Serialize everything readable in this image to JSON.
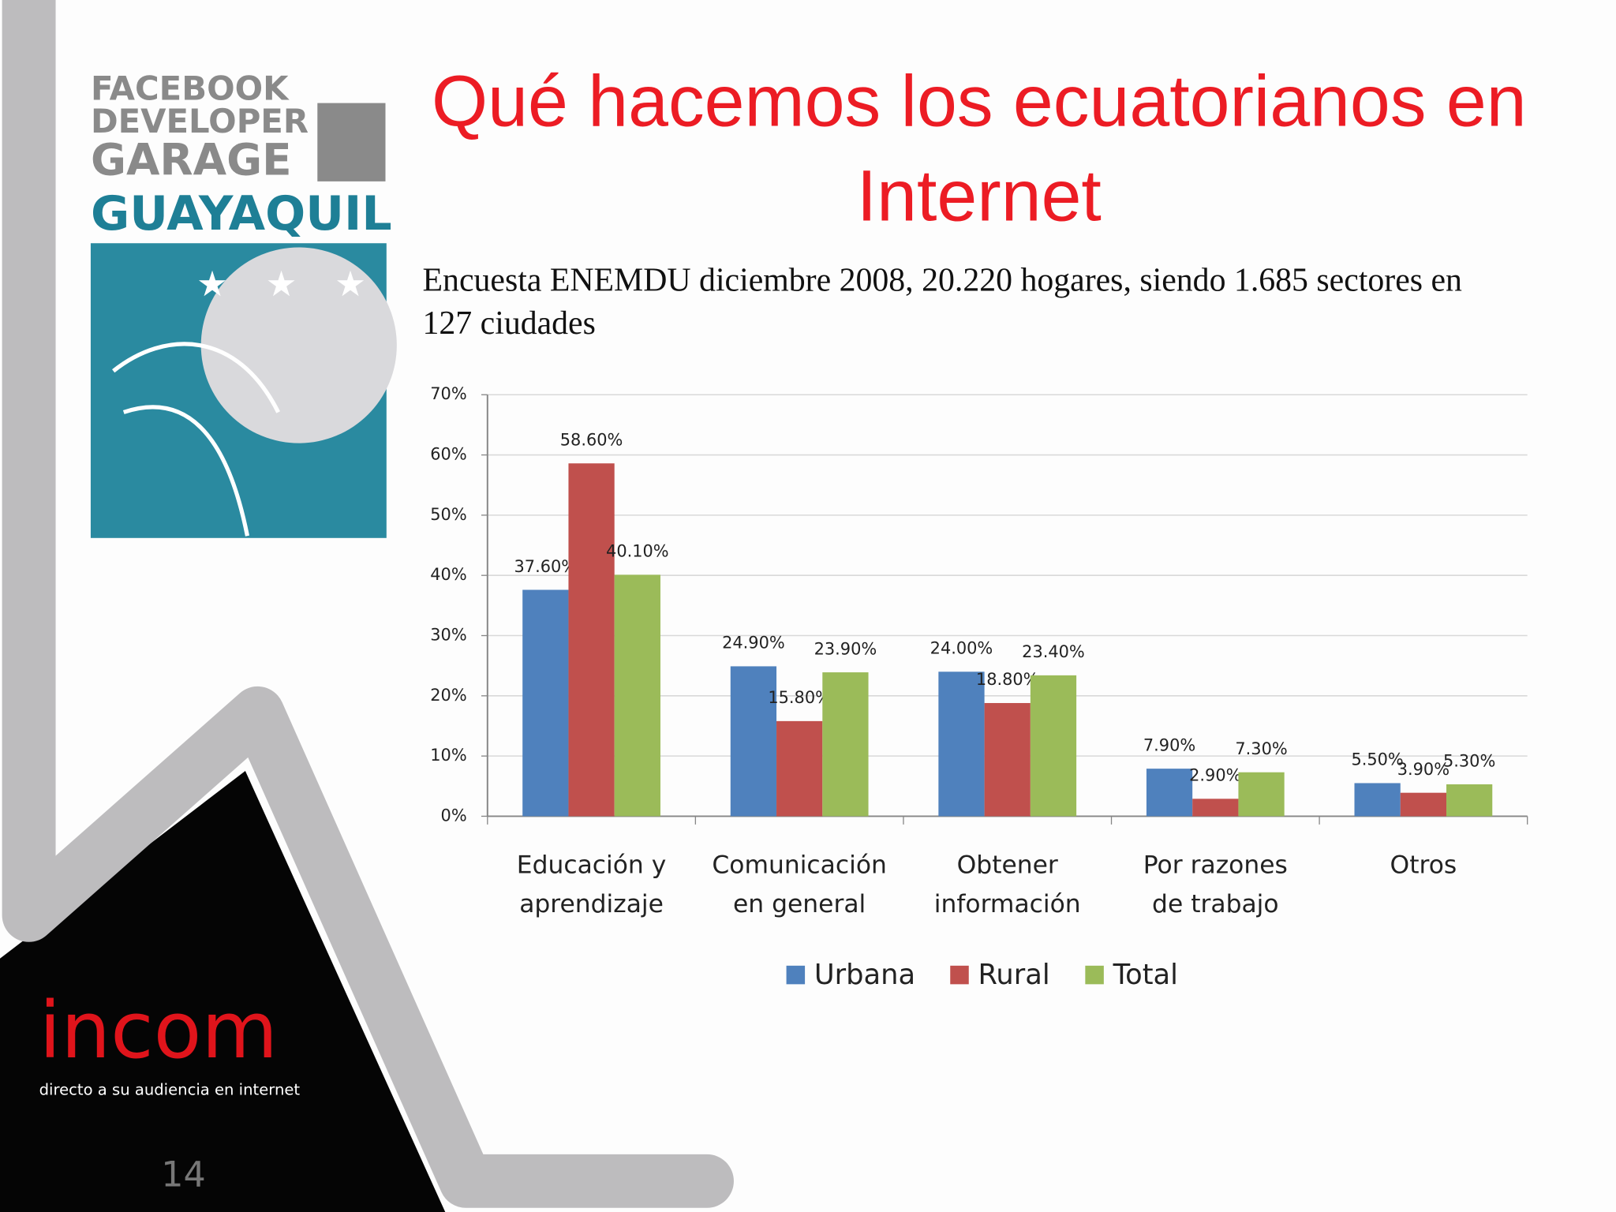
{
  "logo": {
    "line1": "FACEBOOK",
    "line2": "DEVELOPER",
    "line3": "GARAGE",
    "line4": "GUAYAQUIL"
  },
  "footer": {
    "brand": "incom",
    "tagline": "directo a su audiencia en internet",
    "slide_number": "14"
  },
  "chart_data": {
    "type": "bar",
    "title": "Qué hacemos los ecuatorianos en Internet",
    "subtitle": "Encuesta ENEMDU diciembre 2008, 20.220 hogares, siendo 1.685 sectores en 127 ciudades",
    "categories": [
      "Educación y aprendizaje",
      "Comunicación en general",
      "Obtener información",
      "Por razones de trabajo",
      "Otros"
    ],
    "series": [
      {
        "name": "Urbana",
        "color": "#4f81bd",
        "values": [
          37.6,
          24.9,
          24.0,
          7.9,
          5.5
        ],
        "value_labels": [
          "37.60%",
          "24.90%",
          "24.00%",
          "7.90%",
          "5.50%"
        ]
      },
      {
        "name": "Rural",
        "color": "#c0504d",
        "values": [
          58.6,
          15.8,
          18.8,
          2.9,
          3.9
        ],
        "value_labels": [
          "58.60%",
          "15.80%",
          "18.80%",
          "2.90%",
          "3.90%"
        ]
      },
      {
        "name": "Total",
        "color": "#9bbb59",
        "values": [
          40.1,
          23.9,
          23.4,
          7.3,
          5.3
        ],
        "value_labels": [
          "40.10%",
          "23.90%",
          "23.40%",
          "7.30%",
          "5.30%"
        ]
      }
    ],
    "ylim": [
      0,
      70
    ],
    "yticks": [
      {
        "value": 0,
        "label": "0%"
      },
      {
        "value": 10,
        "label": "10%"
      },
      {
        "value": 20,
        "label": "20%"
      },
      {
        "value": 30,
        "label": "30%"
      },
      {
        "value": 40,
        "label": "40%"
      },
      {
        "value": 50,
        "label": "50%"
      },
      {
        "value": 60,
        "label": "60%"
      },
      {
        "value": 70,
        "label": "70%"
      }
    ],
    "grid": true,
    "legend": "bottom"
  }
}
